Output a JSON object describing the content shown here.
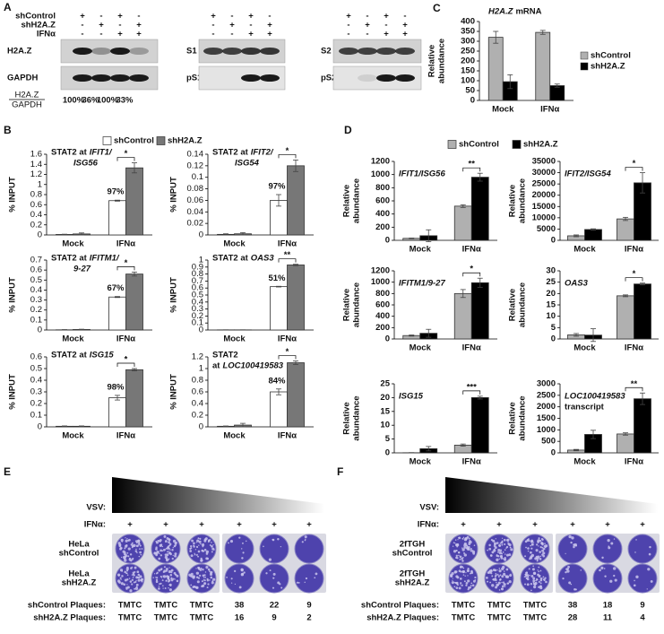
{
  "panel_A": {
    "letter": "A",
    "treatments": [
      {
        "label": "shControl",
        "signs": [
          "+",
          "-",
          "+",
          "-"
        ]
      },
      {
        "label": "shH2A.Z",
        "signs": [
          "-",
          "+",
          "-",
          "+"
        ]
      },
      {
        "label": "IFNα",
        "signs": [
          "-",
          "-",
          "+",
          "+"
        ]
      }
    ],
    "blots": [
      {
        "rows": [
          "H2A.Z",
          "GAPDH"
        ]
      },
      {
        "rows": [
          "S1",
          "pS1"
        ]
      },
      {
        "rows": [
          "S2",
          "pS2"
        ]
      }
    ],
    "ratio": {
      "numerator": "H2A.Z",
      "denominator": "GAPDH",
      "values": [
        "100%",
        "36%",
        "100%",
        "33%"
      ]
    }
  },
  "chart_data": [
    {
      "type": "bar",
      "panel": "C",
      "legend": "right",
      "title": [
        [
          {
            "text": "H2A.Z",
            "italic": true
          },
          {
            "text": "mRNA"
          }
        ]
      ],
      "ylabel": [
        "Relative",
        "abundance"
      ],
      "categories": [
        "Mock",
        "IFNα"
      ],
      "ylim": [
        0,
        400
      ],
      "yticks": [
        0,
        50,
        100,
        150,
        200,
        250,
        300,
        350,
        400
      ],
      "series": [
        {
          "name": "shControl",
          "color": "#b0b0b0",
          "values": [
            320,
            345
          ],
          "errors": [
            30,
            10
          ]
        },
        {
          "name": "shH2A.Z",
          "color": "#000000",
          "values": [
            95,
            75
          ],
          "errors": [
            35,
            8
          ]
        }
      ]
    },
    {
      "type": "bar",
      "panel": "B",
      "legend": "top",
      "title": [
        [
          {
            "text": "STAT2 at"
          },
          {
            "text": "IFIT1/",
            "italic": true
          }
        ],
        [
          {
            "text": "ISG56",
            "italic": true
          }
        ]
      ],
      "ylabel": [
        "% INPUT"
      ],
      "categories": [
        "Mock",
        "IFNα"
      ],
      "ylim": [
        0,
        1.6
      ],
      "yticks": [
        0,
        0.2,
        0.4,
        0.6,
        0.8,
        1,
        1.2,
        1.4,
        1.6
      ],
      "series": [
        {
          "name": "shControl",
          "color": "#ffffff",
          "values": [
            0.01,
            0.68
          ],
          "errors": [
            0.005,
            0.01
          ]
        },
        {
          "name": "shH2A.Z",
          "color": "#777777",
          "values": [
            0.02,
            1.33
          ],
          "errors": [
            0.02,
            0.1
          ]
        }
      ],
      "percent_label": "97%",
      "significance": "*"
    },
    {
      "type": "bar",
      "title": [
        [
          {
            "text": "STAT2 at"
          },
          {
            "text": "IFIT2/",
            "italic": true
          }
        ],
        [
          {
            "text": "ISG54",
            "italic": true
          }
        ]
      ],
      "ylabel": [
        "% INPUT"
      ],
      "categories": [
        "Mock",
        "IFNα"
      ],
      "ylim": [
        0,
        0.14
      ],
      "yticks": [
        0,
        0.02,
        0.04,
        0.06,
        0.08,
        0.1,
        0.12,
        0.14
      ],
      "series": [
        {
          "name": "shControl",
          "color": "#ffffff",
          "values": [
            0.001,
            0.06
          ],
          "errors": [
            0.001,
            0.01
          ]
        },
        {
          "name": "shH2A.Z",
          "color": "#777777",
          "values": [
            0.002,
            0.12
          ],
          "errors": [
            0.002,
            0.01
          ]
        }
      ],
      "percent_label": "97%",
      "significance": "*"
    },
    {
      "type": "bar",
      "title": [
        [
          {
            "text": "STAT2 at"
          },
          {
            "text": "IFITM1/",
            "italic": true
          }
        ],
        [
          {
            "text": "9-27",
            "italic": true
          }
        ]
      ],
      "ylabel": [
        "% INPUT"
      ],
      "categories": [
        "Mock",
        "IFNα"
      ],
      "ylim": [
        0,
        0.7
      ],
      "yticks": [
        0,
        0.1,
        0.2,
        0.3,
        0.4,
        0.5,
        0.6,
        0.7
      ],
      "series": [
        {
          "name": "shControl",
          "color": "#ffffff",
          "values": [
            0.002,
            0.33
          ],
          "errors": [
            0.002,
            0.005
          ]
        },
        {
          "name": "shH2A.Z",
          "color": "#777777",
          "values": [
            0.005,
            0.56
          ],
          "errors": [
            0.003,
            0.02
          ]
        }
      ],
      "percent_label": "67%",
      "significance": "*"
    },
    {
      "type": "bar",
      "title": [
        [
          {
            "text": "STAT2 at"
          },
          {
            "text": "OAS3",
            "italic": true
          }
        ]
      ],
      "ylabel": [
        "% INPUT"
      ],
      "categories": [
        "Mock",
        "IFNα"
      ],
      "ylim": [
        0,
        1
      ],
      "yticks": [
        0,
        0.1,
        0.2,
        0.3,
        0.4,
        0.5,
        0.6,
        0.7,
        0.8,
        0.9,
        1
      ],
      "series": [
        {
          "name": "shControl",
          "color": "#ffffff",
          "values": [
            0.002,
            0.62
          ],
          "errors": [
            0.001,
            0.005
          ]
        },
        {
          "name": "shH2A.Z",
          "color": "#777777",
          "values": [
            0.002,
            0.93
          ],
          "errors": [
            0.001,
            0.01
          ]
        }
      ],
      "percent_label": "51%",
      "significance": "**"
    },
    {
      "type": "bar",
      "title": [
        [
          {
            "text": "STAT2 at"
          },
          {
            "text": "ISG15",
            "italic": true
          }
        ]
      ],
      "ylabel": [
        "% INPUT"
      ],
      "categories": [
        "Mock",
        "IFNα"
      ],
      "ylim": [
        0,
        0.6
      ],
      "yticks": [
        0,
        0.1,
        0.2,
        0.3,
        0.4,
        0.5,
        0.6
      ],
      "series": [
        {
          "name": "shControl",
          "color": "#ffffff",
          "values": [
            0.005,
            0.25
          ],
          "errors": [
            0.003,
            0.02
          ]
        },
        {
          "name": "shH2A.Z",
          "color": "#777777",
          "values": [
            0.005,
            0.49
          ],
          "errors": [
            0.003,
            0.01
          ]
        }
      ],
      "percent_label": "98%",
      "significance": "*"
    },
    {
      "type": "bar",
      "title": [
        [
          {
            "text": "STAT2"
          }
        ],
        [
          {
            "text": "at"
          },
          {
            "text": "LOC100419583",
            "italic": true
          }
        ]
      ],
      "ylabel": [
        "% INPUT"
      ],
      "categories": [
        "Mock",
        "IFNα"
      ],
      "ylim": [
        0,
        1.2
      ],
      "yticks": [
        0,
        0.2,
        0.4,
        0.6,
        0.8,
        1,
        1.2
      ],
      "series": [
        {
          "name": "shControl",
          "color": "#ffffff",
          "values": [
            0.01,
            0.6
          ],
          "errors": [
            0.005,
            0.05
          ]
        },
        {
          "name": "shH2A.Z",
          "color": "#777777",
          "values": [
            0.03,
            1.1
          ],
          "errors": [
            0.03,
            0.03
          ]
        }
      ],
      "percent_label": "84%",
      "significance": "*"
    },
    {
      "type": "bar",
      "panel": "D",
      "legend": "top",
      "title": [
        [
          {
            "text": "IFIT1/ISG56",
            "italic": true
          }
        ]
      ],
      "ylabel": [
        "Relative",
        "abundance"
      ],
      "categories": [
        "Mock",
        "IFNα"
      ],
      "ylim": [
        0,
        1200
      ],
      "yticks": [
        0,
        200,
        400,
        600,
        800,
        1000,
        1200
      ],
      "series": [
        {
          "name": "shControl",
          "color": "#b0b0b0",
          "values": [
            30,
            520
          ],
          "errors": [
            5,
            20
          ]
        },
        {
          "name": "shH2A.Z",
          "color": "#000000",
          "values": [
            70,
            960
          ],
          "errors": [
            90,
            60
          ]
        }
      ],
      "significance": "**"
    },
    {
      "type": "bar",
      "title": [
        [
          {
            "text": "IFIT2/ISG54",
            "italic": true
          }
        ]
      ],
      "ylabel": [
        "Relative",
        "abundance"
      ],
      "categories": [
        "Mock",
        "IFNα"
      ],
      "ylim": [
        0,
        35000
      ],
      "yticks": [
        0,
        5000,
        10000,
        15000,
        20000,
        25000,
        30000,
        35000
      ],
      "series": [
        {
          "name": "shControl",
          "color": "#b0b0b0",
          "values": [
            2000,
            9500
          ],
          "errors": [
            400,
            700
          ]
        },
        {
          "name": "shH2A.Z",
          "color": "#000000",
          "values": [
            4800,
            25500
          ],
          "errors": [
            300,
            4500
          ]
        }
      ],
      "significance": "*"
    },
    {
      "type": "bar",
      "title": [
        [
          {
            "text": "IFITM1/9-27",
            "italic": true
          }
        ]
      ],
      "ylabel": [
        "Relative",
        "abundance"
      ],
      "categories": [
        "Mock",
        "IFNα"
      ],
      "ylim": [
        0,
        1200
      ],
      "yticks": [
        0,
        200,
        400,
        600,
        800,
        1000,
        1200
      ],
      "series": [
        {
          "name": "shControl",
          "color": "#b0b0b0",
          "values": [
            60,
            800
          ],
          "errors": [
            10,
            70
          ]
        },
        {
          "name": "shH2A.Z",
          "color": "#000000",
          "values": [
            100,
            990
          ],
          "errors": [
            70,
            80
          ]
        }
      ],
      "significance": "*"
    },
    {
      "type": "bar",
      "title": [
        [
          {
            "text": "OAS3",
            "italic": true
          }
        ]
      ],
      "ylabel": [
        "Relative",
        "abundance"
      ],
      "categories": [
        "Mock",
        "IFNα"
      ],
      "ylim": [
        0,
        30
      ],
      "yticks": [
        0,
        5,
        10,
        15,
        20,
        25,
        30
      ],
      "series": [
        {
          "name": "shControl",
          "color": "#b0b0b0",
          "values": [
            1.8,
            19
          ],
          "errors": [
            0.6,
            0.4
          ]
        },
        {
          "name": "shH2A.Z",
          "color": "#000000",
          "values": [
            1.7,
            24.2
          ],
          "errors": [
            2.8,
            0.4
          ]
        }
      ],
      "significance": "*"
    },
    {
      "type": "bar",
      "title": [
        [
          {
            "text": "ISG15",
            "italic": true
          }
        ]
      ],
      "ylabel": [
        "Relative",
        "abundance"
      ],
      "categories": [
        "Mock",
        "IFNα"
      ],
      "ylim": [
        0,
        25
      ],
      "yticks": [
        0,
        5,
        10,
        15,
        20,
        25
      ],
      "series": [
        {
          "name": "shControl",
          "color": "#b0b0b0",
          "values": [
            0.05,
            2.8
          ],
          "errors": [
            0.05,
            0.4
          ]
        },
        {
          "name": "shH2A.Z",
          "color": "#000000",
          "values": [
            1.5,
            20
          ],
          "errors": [
            0.8,
            0.5
          ]
        }
      ],
      "significance": "***"
    },
    {
      "type": "bar",
      "title": [
        [
          {
            "text": "LOC100419583",
            "italic": true
          }
        ],
        [
          {
            "text": "transcript"
          }
        ]
      ],
      "ylabel": [
        "Relative",
        "abundance"
      ],
      "categories": [
        "Mock",
        "IFNα"
      ],
      "ylim": [
        0,
        3000
      ],
      "yticks": [
        0,
        500,
        1000,
        1500,
        2000,
        2500,
        3000
      ],
      "series": [
        {
          "name": "shControl",
          "color": "#b0b0b0",
          "values": [
            120,
            820
          ],
          "errors": [
            30,
            50
          ]
        },
        {
          "name": "shH2A.Z",
          "color": "#000000",
          "values": [
            800,
            2350
          ],
          "errors": [
            180,
            250
          ]
        }
      ],
      "significance": "**"
    }
  ],
  "plaque_panels": [
    {
      "letter": "E",
      "vsv_label": "VSV:",
      "ifn_label": "IFNα:",
      "ifn_signs": [
        "+",
        "+",
        "+",
        "+",
        "+",
        "+"
      ],
      "rows": [
        [
          "HeLa",
          "shControl"
        ],
        [
          "HeLa",
          "shH2A.Z"
        ]
      ],
      "counts": [
        {
          "label": "shControl Plaques:",
          "values": [
            "TMTC",
            "TMTC",
            "TMTC",
            "38",
            "22",
            "9"
          ]
        },
        {
          "label": "shH2A.Z Plaques:",
          "values": [
            "TMTC",
            "TMTC",
            "TMTC",
            "16",
            "9",
            "2"
          ]
        }
      ]
    },
    {
      "letter": "F",
      "vsv_label": "VSV:",
      "ifn_label": "IFNα:",
      "ifn_signs": [
        "+",
        "+",
        "+",
        "+",
        "+",
        "+"
      ],
      "rows": [
        [
          "2fTGH",
          "shControl"
        ],
        [
          "2fTGH",
          "shH2A.Z"
        ]
      ],
      "counts": [
        {
          "label": "shControl Plaques:",
          "values": [
            "TMTC",
            "TMTC",
            "TMTC",
            "38",
            "18",
            "9"
          ]
        },
        {
          "label": "shH2A.Z Plaques:",
          "values": [
            "TMTC",
            "TMTC",
            "TMTC",
            "28",
            "11",
            "4"
          ]
        }
      ]
    }
  ]
}
